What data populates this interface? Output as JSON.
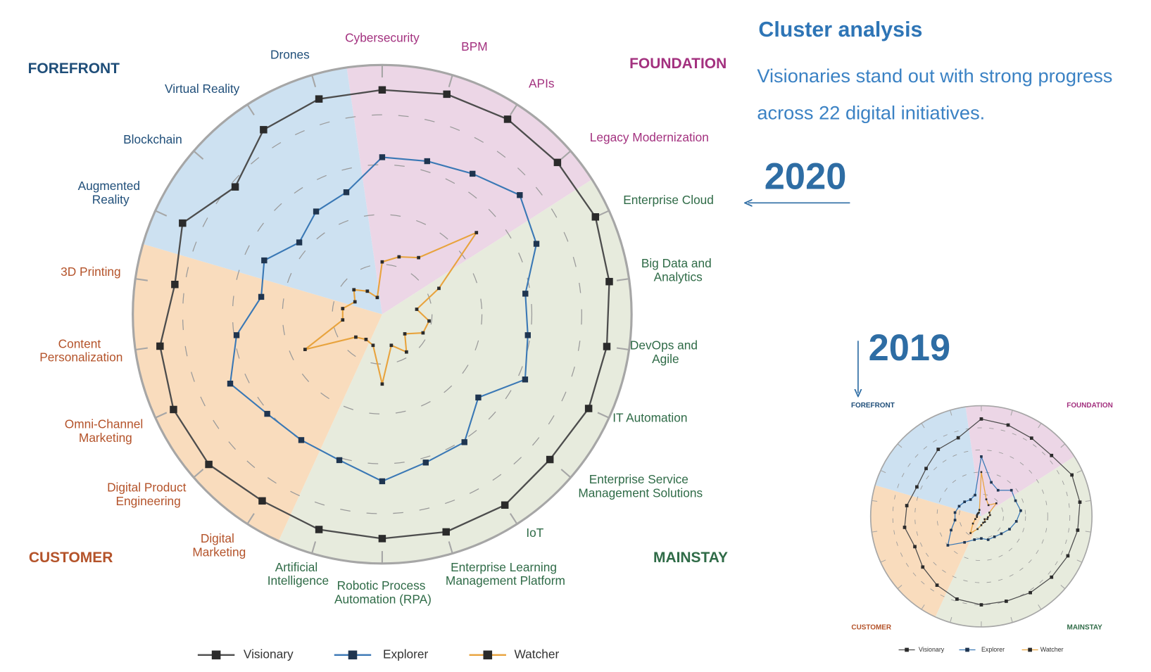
{
  "header": {
    "title": "Cluster analysis",
    "subtitle": "Visionaries stand out with strong progress across 22 digital initiatives."
  },
  "chart_data": [
    {
      "type": "radar",
      "title": "2020",
      "categories": [
        "Cybersecurity",
        "BPM",
        "APIs",
        "Legacy Modernization",
        "Enterprise Cloud",
        "Big Data and Analytics",
        "DevOps and Agile",
        "IT Automation",
        "Enterprise Service Management Solutions",
        "IoT",
        "Enterprise Learning Management Platform",
        "Robotic Process Automation (RPA)",
        "Artificial Intelligence",
        "Digital Marketing",
        "Digital Product Engineering",
        "Omni-Channel Marketing",
        "Content Personalization",
        "3D Printing",
        "Augmented Reality",
        "Blockchain",
        "Virtual Reality",
        "Drones"
      ],
      "series": [
        {
          "name": "Visionary",
          "color": "#4d4d4d",
          "values": [
            4.5,
            4.6,
            4.65,
            4.65,
            4.7,
            4.6,
            4.55,
            4.55,
            4.45,
            4.55,
            4.55,
            4.5,
            4.5,
            4.45,
            4.6,
            4.6,
            4.5,
            4.2,
            4.4,
            3.9,
            4.4,
            4.5
          ]
        },
        {
          "name": "Explorer",
          "color": "#3a78b5",
          "values": [
            3.15,
            3.2,
            3.35,
            3.65,
            3.4,
            2.9,
            2.95,
            3.15,
            2.55,
            3.05,
            3.1,
            3.35,
            3.05,
            3.0,
            3.05,
            3.35,
            2.95,
            2.45,
            2.6,
            2.2,
            2.45,
            2.55
          ]
        },
        {
          "name": "Watcher",
          "color": "#e8a33d",
          "values": [
            1.05,
            1.2,
            1.35,
            2.5,
            1.25,
            0.7,
            0.95,
            0.9,
            0.6,
            0.9,
            0.65,
            1.4,
            0.65,
            0.6,
            0.7,
            1.7,
            0.8,
            0.8,
            0.6,
            0.75,
            0.55,
            0.35
          ]
        }
      ],
      "ylim": [
        0,
        5
      ],
      "yticks": [
        1,
        2,
        3,
        4
      ],
      "grid": true,
      "groups": [
        {
          "name": "FOUNDATION",
          "color": "#a3317f",
          "fill": "#ecd6e6"
        },
        {
          "name": "MAINSTAY",
          "color": "#2f6b47",
          "fill": "#e7ebdd"
        },
        {
          "name": "CUSTOMER",
          "color": "#b4532a",
          "fill": "#f9dcbd"
        },
        {
          "name": "FOREFRONT",
          "color": "#1f4e79",
          "fill": "#cde1f1"
        }
      ]
    },
    {
      "type": "radar",
      "title": "2019",
      "series": [
        {
          "name": "Visionary",
          "color": "#4d4d4d",
          "values": [
            4.4,
            4.3,
            4.2,
            4.2,
            4.5,
            4.5,
            4.4,
            4.3,
            4.2,
            4.1,
            4.0,
            4.0,
            3.9,
            3.7,
            3.5,
            3.3,
            3.5,
            3.4,
            3.2,
            3.3,
            3.6,
            3.7
          ]
        },
        {
          "name": "Explorer",
          "color": "#3a78b5",
          "values": [
            2.7,
            1.6,
            1.4,
            1.8,
            1.7,
            1.8,
            1.6,
            1.4,
            1.2,
            1.1,
            1.1,
            1.0,
            1.1,
            1.4,
            2.0,
            1.5,
            1.2,
            1.2,
            1.1,
            1.0,
            0.9,
            1.0
          ]
        },
        {
          "name": "Watcher",
          "color": "#e8a33d",
          "values": [
            2.0,
            0.8,
            0.6,
            0.9,
            0.4,
            0.4,
            0.3,
            0.3,
            0.2,
            0.3,
            0.3,
            0.4,
            0.6,
            0.9,
            0.5,
            0.3,
            0.2,
            0.2,
            0.2,
            0.2,
            0.2,
            0.3
          ]
        }
      ],
      "ylim": [
        0,
        5
      ],
      "yticks": [
        1,
        2,
        3,
        4
      ],
      "grid": true,
      "groups": [
        {
          "name": "FOUNDATION",
          "color": "#a3317f",
          "fill": "#ecd6e6"
        },
        {
          "name": "MAINSTAY",
          "color": "#2f6b47",
          "fill": "#e7ebdd"
        },
        {
          "name": "CUSTOMER",
          "color": "#b4532a",
          "fill": "#f9dcbd"
        },
        {
          "name": "FOREFRONT",
          "color": "#1f4e79",
          "fill": "#cde1f1"
        }
      ]
    }
  ]
}
